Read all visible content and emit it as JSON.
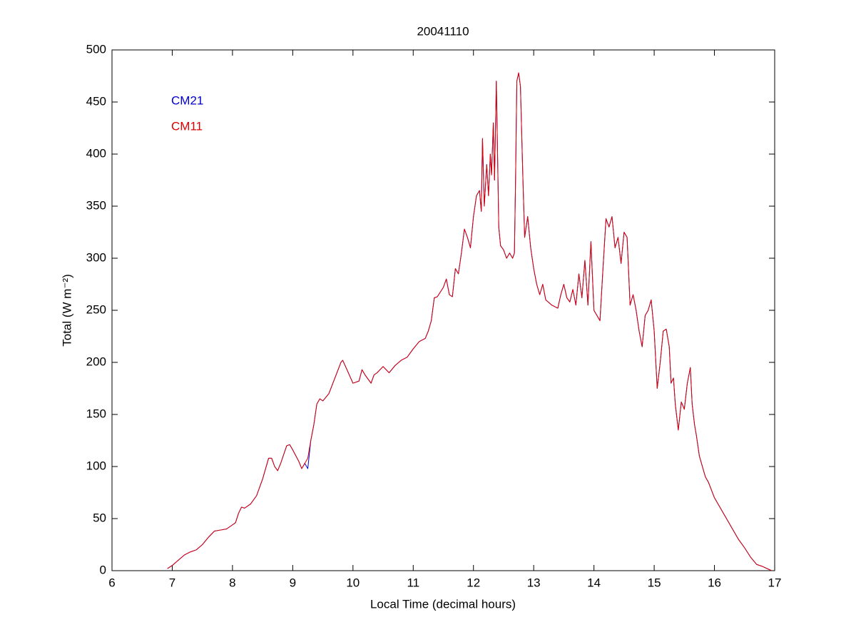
{
  "chart_data": {
    "type": "line",
    "title": "20041110",
    "xlabel": "Local Time (decimal hours)",
    "ylabel": "Total (W m⁻²)",
    "legend": "upper left",
    "x": [
      6.92,
      7.0,
      7.1,
      7.2,
      7.3,
      7.4,
      7.5,
      7.6,
      7.7,
      7.8,
      7.9,
      8.0,
      8.05,
      8.1,
      8.15,
      8.2,
      8.3,
      8.4,
      8.5,
      8.6,
      8.65,
      8.7,
      8.75,
      8.8,
      8.9,
      8.95,
      9.0,
      9.1,
      9.15,
      9.2,
      9.25,
      9.3,
      9.35,
      9.4,
      9.45,
      9.5,
      9.6,
      9.7,
      9.8,
      9.83,
      9.9,
      10.0,
      10.1,
      10.15,
      10.2,
      10.3,
      10.35,
      10.4,
      10.5,
      10.6,
      10.7,
      10.8,
      10.9,
      11.0,
      11.1,
      11.2,
      11.25,
      11.3,
      11.35,
      11.4,
      11.5,
      11.55,
      11.6,
      11.65,
      11.7,
      11.75,
      11.8,
      11.85,
      11.9,
      11.95,
      12.0,
      12.05,
      12.1,
      12.13,
      12.15,
      12.18,
      12.22,
      12.25,
      12.28,
      12.3,
      12.33,
      12.35,
      12.38,
      12.42,
      12.45,
      12.5,
      12.55,
      12.6,
      12.65,
      12.68,
      12.7,
      12.72,
      12.75,
      12.78,
      12.82,
      12.85,
      12.9,
      12.95,
      13.0,
      13.05,
      13.1,
      13.15,
      13.2,
      13.3,
      13.4,
      13.45,
      13.5,
      13.55,
      13.6,
      13.65,
      13.7,
      13.75,
      13.8,
      13.85,
      13.9,
      13.95,
      14.0,
      14.1,
      14.15,
      14.2,
      14.25,
      14.3,
      14.35,
      14.4,
      14.45,
      14.5,
      14.55,
      14.6,
      14.65,
      14.7,
      14.75,
      14.8,
      14.85,
      14.9,
      14.95,
      15.0,
      15.05,
      15.1,
      15.15,
      15.2,
      15.25,
      15.28,
      15.32,
      15.35,
      15.4,
      15.45,
      15.5,
      15.55,
      15.6,
      15.63,
      15.67,
      15.7,
      15.75,
      15.8,
      15.85,
      15.9,
      16.0,
      16.1,
      16.2,
      16.3,
      16.4,
      16.5,
      16.6,
      16.7,
      16.8,
      16.95
    ],
    "series": [
      {
        "name": "CM21",
        "color": "#0000cc",
        "values": [
          2,
          5,
          10,
          15,
          18,
          20,
          25,
          32,
          38,
          39,
          40,
          44,
          46,
          55,
          61,
          60,
          64,
          72,
          88,
          108,
          108,
          100,
          96,
          103,
          120,
          121,
          116,
          105,
          98,
          103,
          98,
          125,
          140,
          160,
          165,
          163,
          170,
          185,
          200,
          202,
          193,
          180,
          182,
          193,
          188,
          180,
          188,
          190,
          196,
          190,
          197,
          202,
          205,
          213,
          220,
          223,
          230,
          240,
          262,
          263,
          272,
          280,
          265,
          263,
          290,
          285,
          305,
          328,
          320,
          310,
          340,
          360,
          365,
          345,
          415,
          350,
          390,
          360,
          400,
          380,
          430,
          375,
          470,
          330,
          312,
          308,
          300,
          305,
          300,
          305,
          380,
          470,
          478,
          465,
          378,
          320,
          340,
          310,
          290,
          275,
          265,
          275,
          260,
          255,
          252,
          265,
          275,
          262,
          258,
          270,
          255,
          285,
          262,
          298,
          255,
          316,
          250,
          240,
          290,
          338,
          330,
          340,
          310,
          320,
          295,
          325,
          320,
          255,
          265,
          250,
          230,
          215,
          245,
          250,
          260,
          230,
          175,
          200,
          230,
          232,
          215,
          180,
          185,
          160,
          135,
          162,
          155,
          180,
          195,
          160,
          140,
          130,
          110,
          100,
          90,
          85,
          70,
          60,
          50,
          40,
          30,
          22,
          13,
          6,
          4,
          0
        ]
      },
      {
        "name": "CM11",
        "color": "#dd0000",
        "values": [
          2,
          5,
          10,
          15,
          18,
          20,
          25,
          32,
          38,
          39,
          40,
          44,
          46,
          55,
          61,
          60,
          64,
          72,
          88,
          108,
          108,
          100,
          96,
          103,
          120,
          121,
          116,
          105,
          98,
          103,
          108,
          125,
          140,
          160,
          165,
          163,
          170,
          185,
          200,
          202,
          193,
          180,
          182,
          193,
          188,
          180,
          188,
          190,
          196,
          190,
          197,
          202,
          205,
          213,
          220,
          223,
          230,
          240,
          262,
          263,
          272,
          280,
          265,
          263,
          290,
          285,
          305,
          328,
          320,
          310,
          340,
          360,
          365,
          345,
          415,
          350,
          390,
          360,
          400,
          380,
          430,
          375,
          470,
          330,
          312,
          308,
          300,
          305,
          300,
          305,
          380,
          470,
          478,
          465,
          378,
          320,
          340,
          310,
          290,
          275,
          265,
          275,
          260,
          255,
          252,
          265,
          275,
          262,
          258,
          270,
          255,
          285,
          262,
          298,
          255,
          316,
          250,
          240,
          290,
          338,
          330,
          340,
          310,
          320,
          295,
          325,
          320,
          255,
          265,
          250,
          230,
          215,
          245,
          250,
          260,
          230,
          175,
          200,
          230,
          232,
          215,
          180,
          185,
          160,
          135,
          162,
          155,
          180,
          195,
          160,
          140,
          130,
          110,
          100,
          90,
          85,
          70,
          60,
          50,
          40,
          30,
          22,
          13,
          6,
          4,
          0
        ]
      }
    ],
    "xlim": [
      6,
      17
    ],
    "xticks": [
      6,
      7,
      8,
      9,
      10,
      11,
      12,
      13,
      14,
      15,
      16,
      17
    ],
    "ylim": [
      0,
      500
    ],
    "yticks": [
      0,
      50,
      100,
      150,
      200,
      250,
      300,
      350,
      400,
      450,
      500
    ],
    "grid": false
  }
}
